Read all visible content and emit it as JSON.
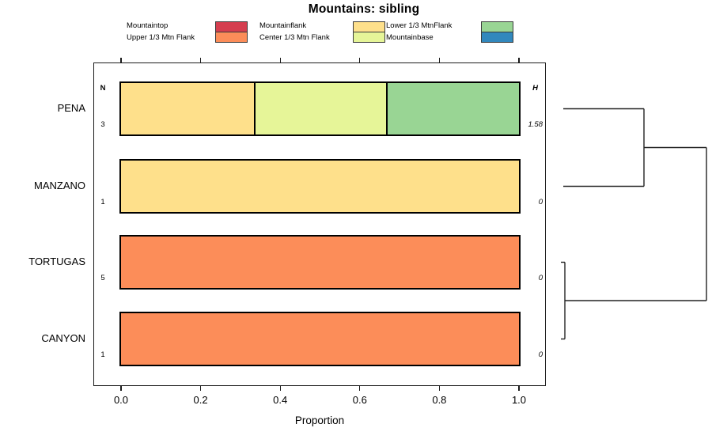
{
  "title": "Mountains: sibling",
  "legend": {
    "items": [
      {
        "label": "Mountaintop",
        "color": "#D53E4F"
      },
      {
        "label": "Upper 1/3 Mtn Flank",
        "color": "#FC8D59"
      },
      {
        "label": "Mountainflank",
        "color": "#FEE08B"
      },
      {
        "label": "Center 1/3 Mtn Flank",
        "color": "#E6F598"
      },
      {
        "label": "Lower 1/3 MtnFlank",
        "color": "#99D594"
      },
      {
        "label": "Mountainbase",
        "color": "#3288BD"
      }
    ]
  },
  "chart_data": {
    "type": "bar",
    "orientation": "horizontal",
    "stacked": true,
    "title": "Mountains: sibling",
    "xlabel": "Proportion",
    "xlim": [
      0,
      1
    ],
    "xticks": [
      0.0,
      0.2,
      0.4,
      0.6,
      0.8,
      1.0
    ],
    "grid": false,
    "legend_position": "top",
    "n_header": "N",
    "h_header": "H",
    "categories": [
      "PENA",
      "MANZANO",
      "TORTUGAS",
      "CANYON"
    ],
    "rows": [
      {
        "category": "PENA",
        "n": "3",
        "h": "1.58",
        "segments": [
          {
            "name": "Mountainflank",
            "value": 0.3333,
            "color": "#FEE08B"
          },
          {
            "name": "Center 1/3 Mtn Flank",
            "value": 0.3333,
            "color": "#E6F598"
          },
          {
            "name": "Lower 1/3 MtnFlank",
            "value": 0.3334,
            "color": "#99D594"
          }
        ]
      },
      {
        "category": "MANZANO",
        "n": "1",
        "h": "0",
        "segments": [
          {
            "name": "Mountainflank",
            "value": 1.0,
            "color": "#FEE08B"
          }
        ]
      },
      {
        "category": "TORTUGAS",
        "n": "5",
        "h": "0",
        "segments": [
          {
            "name": "Upper 1/3 Mtn Flank",
            "value": 1.0,
            "color": "#FC8D59"
          }
        ]
      },
      {
        "category": "CANYON",
        "n": "1",
        "h": "0",
        "segments": [
          {
            "name": "Upper 1/3 Mtn Flank",
            "value": 1.0,
            "color": "#FC8D59"
          }
        ]
      }
    ],
    "dendrogram": {
      "position": "right-margin",
      "clusters": [
        {
          "members": [
            "PENA",
            "MANZANO"
          ],
          "relative_height": "large"
        },
        {
          "members": [
            "TORTUGAS",
            "CANYON"
          ],
          "relative_height": "near-zero"
        },
        {
          "members": [
            [
              "PENA",
              "MANZANO"
            ],
            [
              "TORTUGAS",
              "CANYON"
            ]
          ],
          "relative_height": "root"
        }
      ]
    }
  }
}
